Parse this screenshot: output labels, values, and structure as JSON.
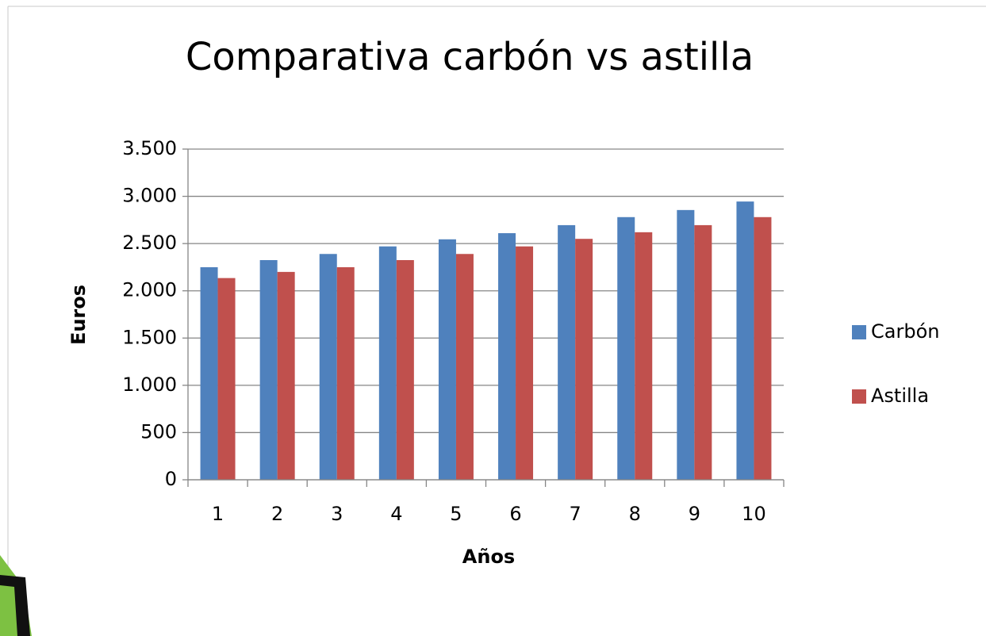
{
  "chart_data": {
    "type": "bar",
    "title": "Comparativa carbón vs astilla",
    "x_label": "Años",
    "y_label": "Euros",
    "categories": [
      "1",
      "2",
      "3",
      "4",
      "5",
      "6",
      "7",
      "8",
      "9",
      "10"
    ],
    "series": [
      {
        "name": "Carbón",
        "color": "#4f81bd",
        "values": [
          2250,
          2325,
          2390,
          2470,
          2545,
          2610,
          2695,
          2780,
          2855,
          2945
        ]
      },
      {
        "name": "Astilla",
        "color": "#c0504d",
        "values": [
          2135,
          2200,
          2250,
          2325,
          2390,
          2470,
          2550,
          2620,
          2695,
          2780
        ]
      }
    ],
    "ylim": [
      0,
      3500
    ],
    "yticks": [
      0,
      500,
      {
        "value": 1000,
        "label": "1.000"
      },
      {
        "value": 1500,
        "label": "1.500"
      },
      {
        "value": 2000,
        "label": "2.000"
      },
      {
        "value": 2500,
        "label": "2.500"
      },
      {
        "value": 3000,
        "label": "3.000"
      },
      {
        "value": 3500,
        "label": "3.500"
      }
    ],
    "grid": true,
    "legend": "right"
  }
}
